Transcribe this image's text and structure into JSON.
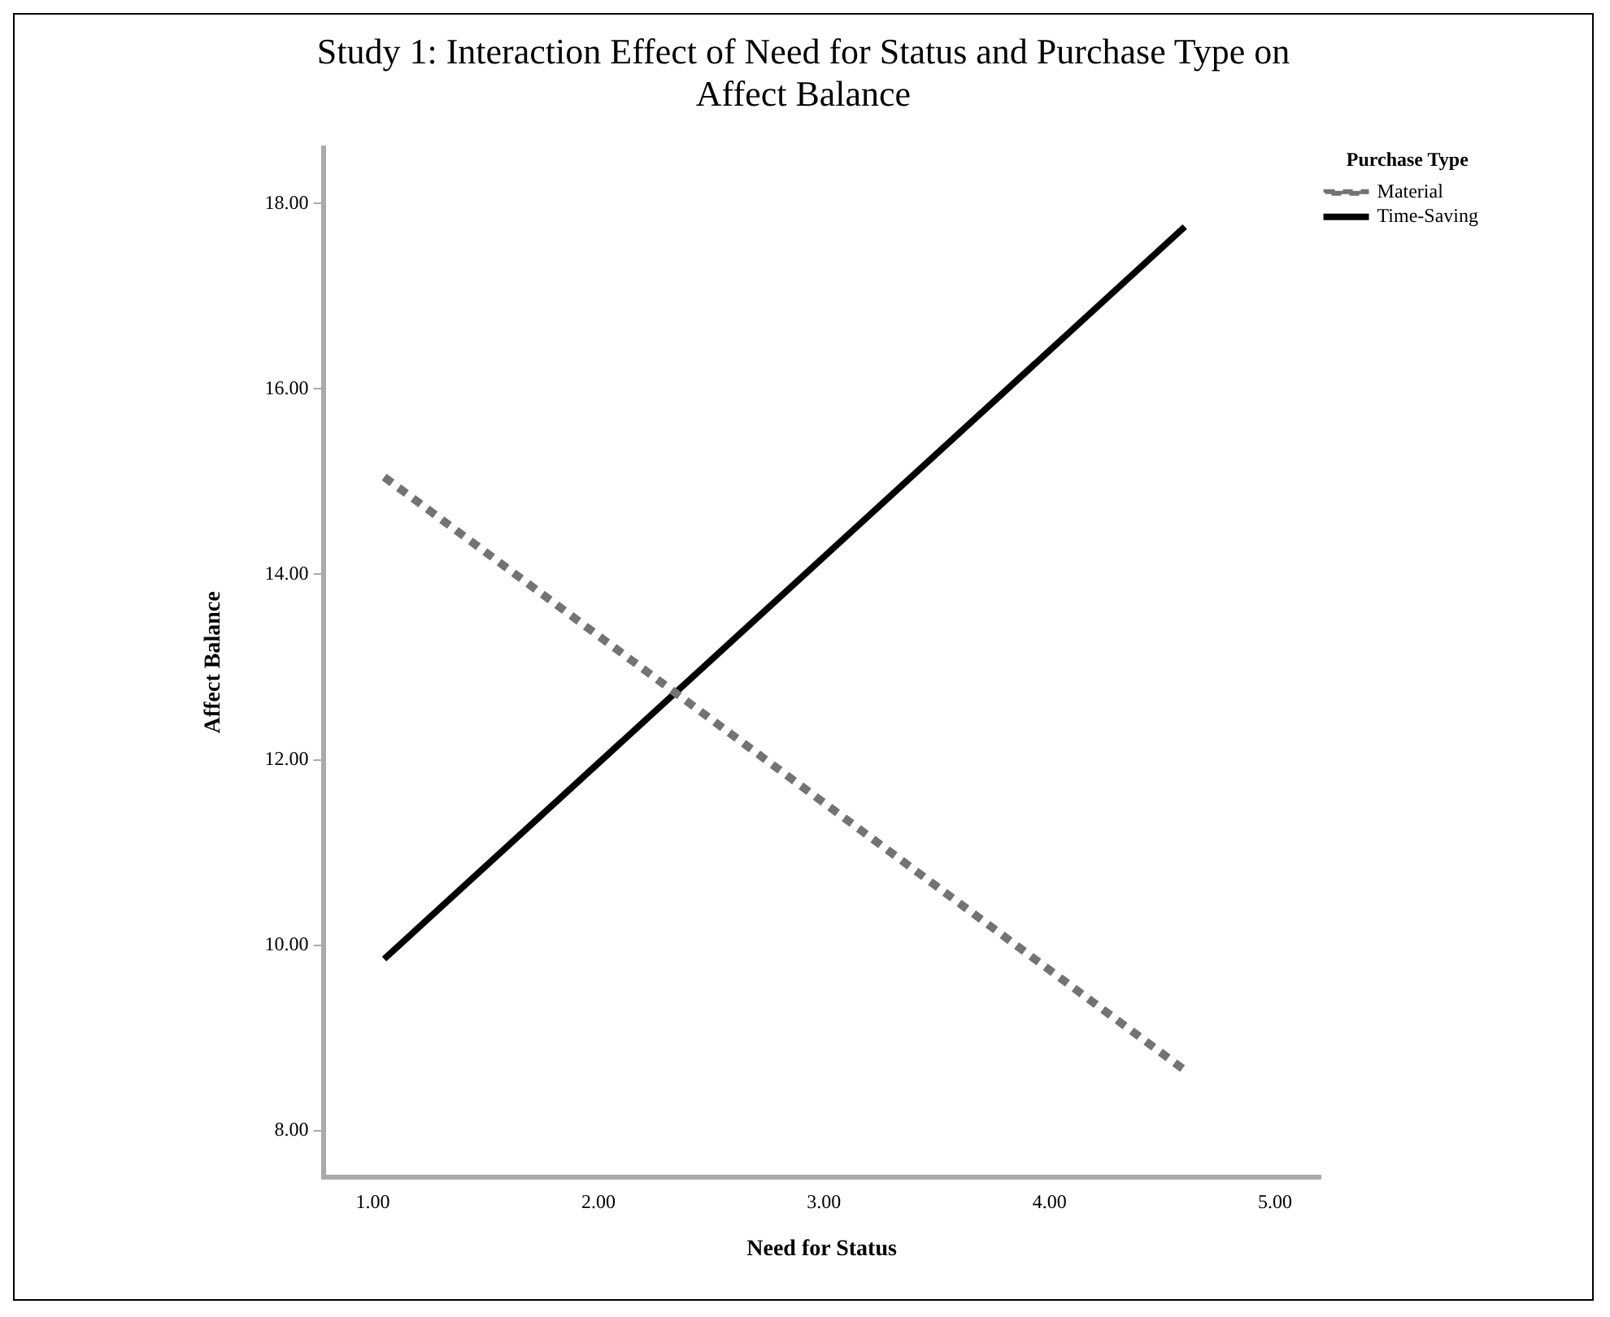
{
  "chart_data": {
    "type": "line",
    "title": "Study 1: Interaction Effect of Need for Status and Purchase Type on Affect Balance",
    "xlabel": "Need for Status",
    "ylabel": "Affect Balance",
    "legend_title": "Purchase Type",
    "legend": "top right",
    "grid": false,
    "marker": "none",
    "xlim": [
      0.78,
      5.2
    ],
    "xticks": [
      {
        "value": 1,
        "label": "1.00"
      },
      {
        "value": 2,
        "label": "2.00"
      },
      {
        "value": 3,
        "label": "3.00"
      },
      {
        "value": 4,
        "label": "4.00"
      },
      {
        "value": 5,
        "label": "5.00"
      }
    ],
    "ylim": [
      7.5,
      18.6
    ],
    "yticks": [
      {
        "value": 8,
        "label": "8.00"
      },
      {
        "value": 10,
        "label": "10.00"
      },
      {
        "value": 12,
        "label": "12.00"
      },
      {
        "value": 14,
        "label": "14.00"
      },
      {
        "value": 16,
        "label": "16.00"
      },
      {
        "value": 18,
        "label": "18.00"
      }
    ],
    "x": [
      1.05,
      4.6
    ],
    "series": [
      {
        "name": "Material",
        "color": "#737373",
        "line_style": "dashed",
        "values": [
          15.05,
          8.65
        ]
      },
      {
        "name": "Time-Saving",
        "color": "#000000",
        "line_style": "solid",
        "values": [
          9.85,
          17.75
        ]
      }
    ]
  }
}
